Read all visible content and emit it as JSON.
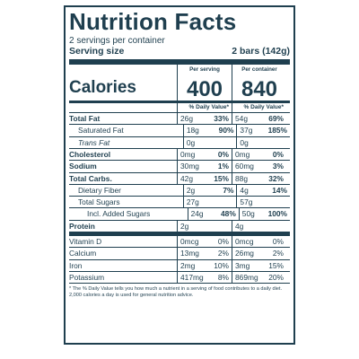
{
  "header": {
    "title": "Nutrition Facts",
    "servings": "2 servings per container",
    "serving_size_label": "Serving size",
    "serving_size_value": "2 bars (142g)"
  },
  "columns": {
    "per_serving": "Per serving",
    "per_container": "Per container"
  },
  "calories": {
    "label": "Calories",
    "per_serving": "400",
    "per_container": "840"
  },
  "daily_value_header": "% Daily Value*",
  "nutrients": [
    {
      "name": "Total Fat",
      "serving_amount": "26g",
      "serving_dv": "33%",
      "container_amount": "54g",
      "container_dv": "69%"
    },
    {
      "name": "Saturated Fat",
      "serving_amount": "18g",
      "serving_dv": "90%",
      "container_amount": "37g",
      "container_dv": "185%"
    },
    {
      "name": "Trans Fat",
      "serving_amount": "0g",
      "serving_dv": "",
      "container_amount": "0g",
      "container_dv": ""
    },
    {
      "name": "Cholesterol",
      "serving_amount": "0mg",
      "serving_dv": "0%",
      "container_amount": "0mg",
      "container_dv": "0%"
    },
    {
      "name": "Sodium",
      "serving_amount": "30mg",
      "serving_dv": "1%",
      "container_amount": "60mg",
      "container_dv": "3%"
    },
    {
      "name": "Total Carbs.",
      "serving_amount": "42g",
      "serving_dv": "15%",
      "container_amount": "88g",
      "container_dv": "32%"
    },
    {
      "name": "Dietary Fiber",
      "serving_amount": "2g",
      "serving_dv": "7%",
      "container_amount": "4g",
      "container_dv": "14%"
    },
    {
      "name": "Total Sugars",
      "serving_amount": "27g",
      "serving_dv": "",
      "container_amount": "57g",
      "container_dv": ""
    },
    {
      "name": "Incl. Added Sugars",
      "serving_amount": "24g",
      "serving_dv": "48%",
      "container_amount": "50g",
      "container_dv": "100%"
    },
    {
      "name": "Protein",
      "serving_amount": "2g",
      "serving_dv": "",
      "container_amount": "4g",
      "container_dv": ""
    }
  ],
  "vitamins": [
    {
      "name": "Vitamin D",
      "serving_amount": "0mcg",
      "serving_dv": "0%",
      "container_amount": "0mcg",
      "container_dv": "0%"
    },
    {
      "name": "Calcium",
      "serving_amount": "13mg",
      "serving_dv": "2%",
      "container_amount": "26mg",
      "container_dv": "2%"
    },
    {
      "name": "Iron",
      "serving_amount": "2mg",
      "serving_dv": "10%",
      "container_amount": "3mg",
      "container_dv": "15%"
    },
    {
      "name": "Potassium",
      "serving_amount": "417mg",
      "serving_dv": "8%",
      "container_amount": "869mg",
      "container_dv": "20%"
    }
  ],
  "footnote": "* The % Daily Value tells you how much a nutrient in a serving of food contributes to a daily diet. 2,000 calories a day is used for general nutrition advice.",
  "colors": {
    "ink": "#1f3f4f",
    "background": "#ffffff"
  }
}
